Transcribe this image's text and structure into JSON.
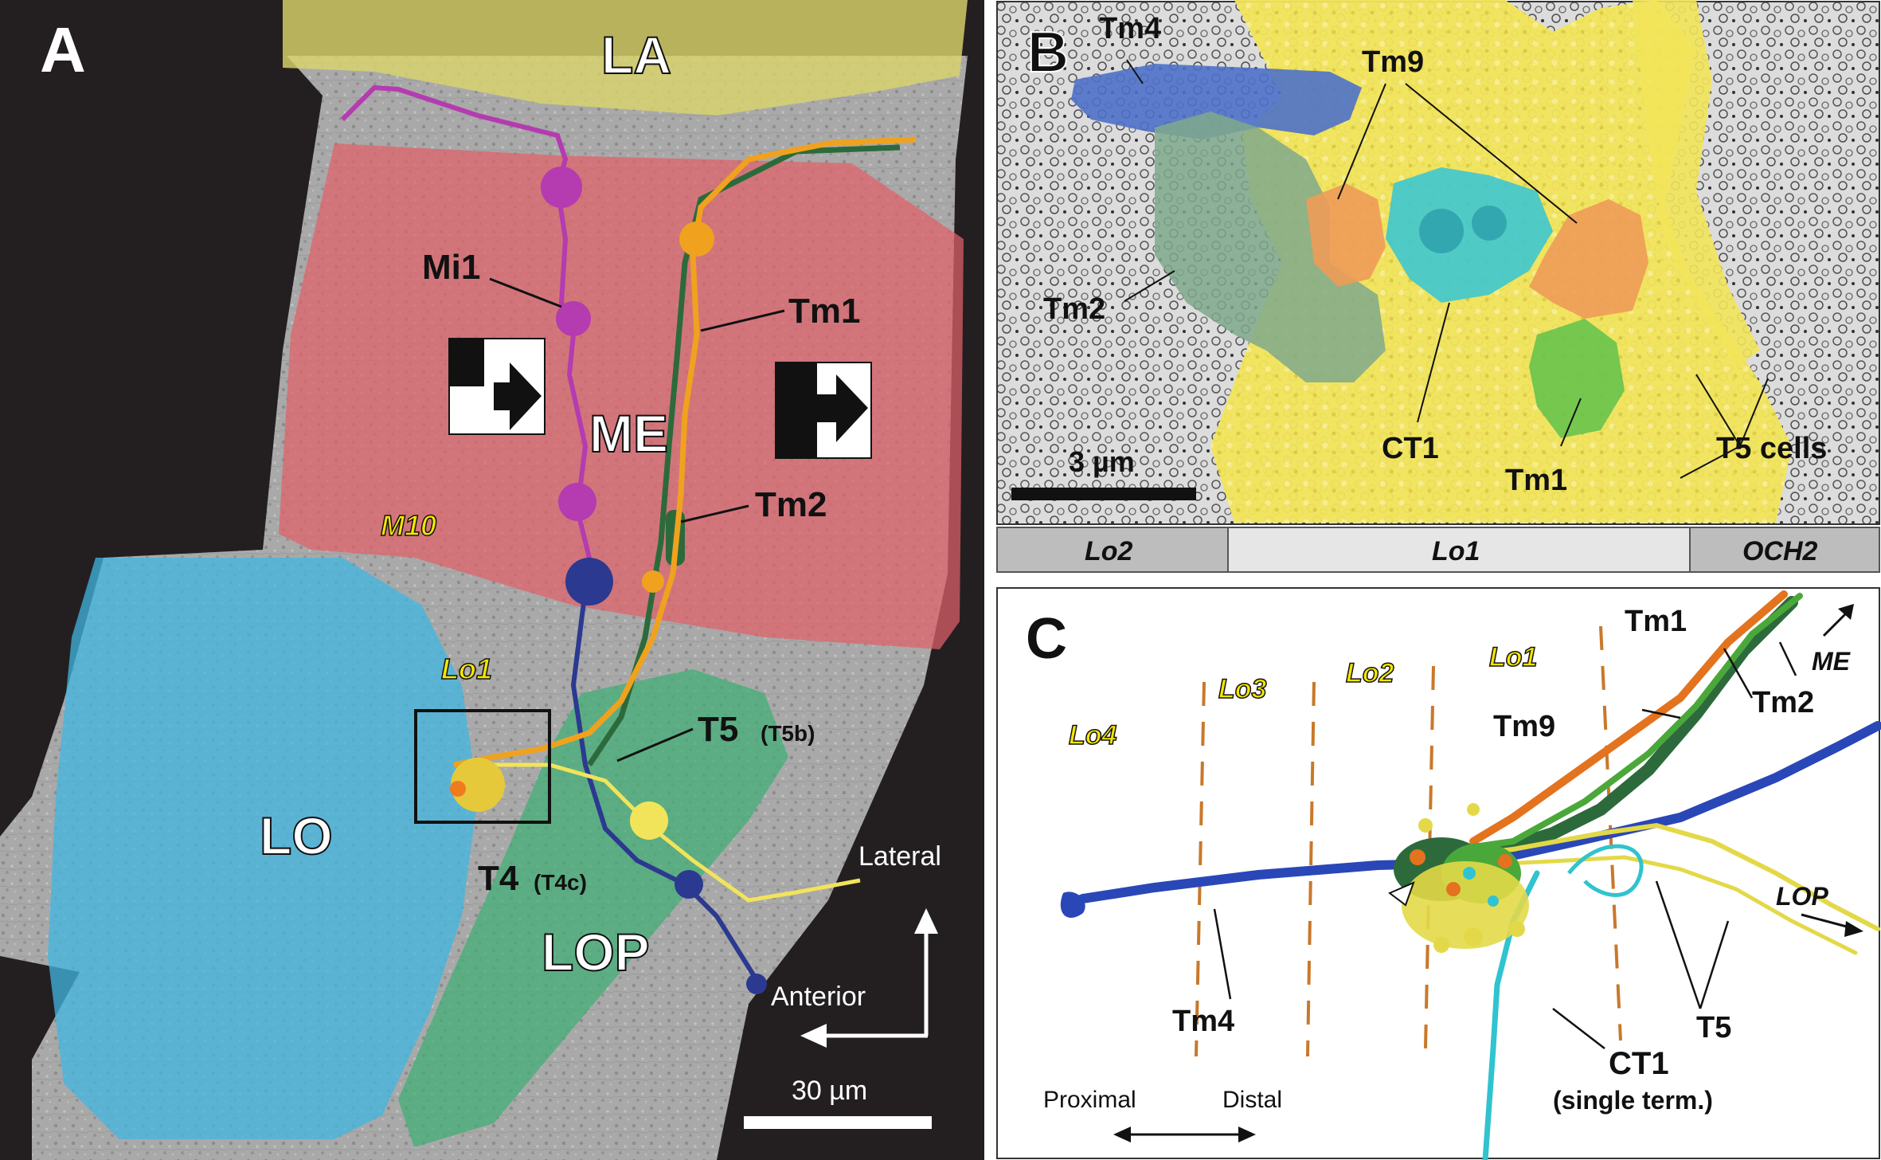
{
  "panel_a": {
    "letter": "A",
    "regions": {
      "la": "LA",
      "me": "ME",
      "lo": "LO",
      "lop": "LOP",
      "m10": "M10",
      "lo1": "Lo1"
    },
    "cells": {
      "mi1": "Mi1",
      "tm1": "Tm1",
      "tm2": "Tm2",
      "t5": "T5",
      "t5_sub": "(T5b)",
      "t4": "T4",
      "t4_sub": "(T4c)"
    },
    "axes": {
      "lateral": "Lateral",
      "anterior": "Anterior"
    },
    "scale_bar": "30 µm",
    "colors": {
      "la": "#d9d36b",
      "me": "#e0616a",
      "lo": "#42b7e2",
      "lop": "#3faf74",
      "mi1": "#b43bb0",
      "tm1": "#f0a21e",
      "tm2": "#2d6a3b",
      "t4": "#2c3990",
      "t5": "#f2e45a"
    }
  },
  "panel_b": {
    "letter": "B",
    "cells": {
      "tm4": "Tm4",
      "tm9": "Tm9",
      "tm2": "Tm2",
      "ct1": "CT1",
      "tm1": "Tm1",
      "t5": "T5 cells"
    },
    "scale_bar": "3 µm",
    "layers": [
      "Lo2",
      "Lo1",
      "OCH2"
    ],
    "colors": {
      "tm4": "#4e71c9",
      "tm9": "#ee9b58",
      "tm2": "#7fa98c",
      "ct1": "#3ec6cf",
      "tm1": "#67c34d",
      "t5": "#f2e45a"
    }
  },
  "panel_c": {
    "letter": "C",
    "layers": [
      "Lo4",
      "Lo3",
      "Lo2",
      "Lo1"
    ],
    "cells": {
      "tm1": "Tm1",
      "tm2": "Tm2",
      "tm9": "Tm9",
      "tm4": "Tm4",
      "t5": "T5",
      "ct1": "CT1",
      "ct1_note": "(single term.)"
    },
    "directions": {
      "me": "ME",
      "lop": "LOP",
      "proximal": "Proximal",
      "distal": "Distal"
    },
    "colors": {
      "tm4": "#2a47b8",
      "tm9": "#e3731e",
      "tm1": "#4aa83a",
      "tm2": "#2d6a3b",
      "t5": "#e3d948",
      "ct1": "#30c3d0",
      "layer_line": "#c9782a"
    }
  }
}
